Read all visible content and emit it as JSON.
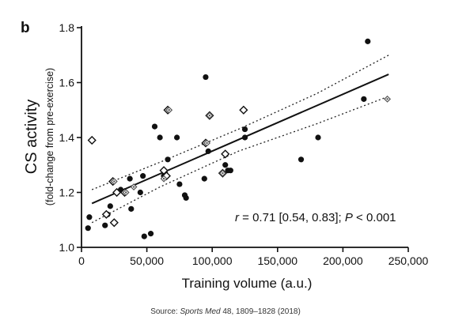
{
  "panel_label": "b",
  "source": {
    "prefix": "Source: ",
    "journal": "Sports Med",
    "suffix": " 48, 1809–1828 (2018)"
  },
  "chart_data": {
    "type": "scatter",
    "title": "",
    "xlabel": "Training volume (a.u.)",
    "ylabel": "CS activity",
    "ylabel_sub": "(fold-change from pre-exercise)",
    "xlim": [
      0,
      250000
    ],
    "ylim": [
      1.0,
      1.8
    ],
    "x_ticks": [
      0,
      50000,
      100000,
      150000,
      200000,
      250000
    ],
    "x_tick_labels": [
      "0",
      "50,000",
      "100,000",
      "150,000",
      "200,000",
      "250,000"
    ],
    "y_ticks": [
      1.0,
      1.2,
      1.4,
      1.6,
      1.8
    ],
    "y_tick_labels": [
      "1.0",
      "1.2",
      "1.4",
      "1.6",
      "1.8"
    ],
    "grid": false,
    "legend": "none",
    "annotation": {
      "r_symbol": "r",
      "r_text": " = 0.71 [0.54, 0.83]; ",
      "p_symbol": "P",
      "p_text": " < 0.001"
    },
    "series": [
      {
        "marker": "circle-filled",
        "color": "#111111",
        "points": [
          [
            5000,
            1.07
          ],
          [
            6000,
            1.11
          ],
          [
            18000,
            1.08
          ],
          [
            20000,
            1.12
          ],
          [
            22000,
            1.15
          ],
          [
            30000,
            1.21
          ],
          [
            37000,
            1.25
          ],
          [
            38000,
            1.14
          ],
          [
            45000,
            1.2
          ],
          [
            47000,
            1.26
          ],
          [
            48000,
            1.04
          ],
          [
            53000,
            1.05
          ],
          [
            56000,
            1.44
          ],
          [
            60000,
            1.4
          ],
          [
            63000,
            1.26
          ],
          [
            64000,
            1.27
          ],
          [
            66000,
            1.32
          ],
          [
            73000,
            1.4
          ],
          [
            75000,
            1.23
          ],
          [
            79000,
            1.19
          ],
          [
            80000,
            1.18
          ],
          [
            94000,
            1.25
          ],
          [
            95000,
            1.62
          ],
          [
            97000,
            1.35
          ],
          [
            110000,
            1.3
          ],
          [
            112000,
            1.28
          ],
          [
            114000,
            1.28
          ],
          [
            125000,
            1.43
          ],
          [
            125000,
            1.4
          ],
          [
            168000,
            1.32
          ],
          [
            181000,
            1.4
          ],
          [
            216000,
            1.54
          ],
          [
            219000,
            1.75
          ]
        ]
      },
      {
        "marker": "diamond-open",
        "color": "#111111",
        "points": [
          [
            8000,
            1.39
          ],
          [
            19000,
            1.12
          ],
          [
            24000,
            1.24
          ],
          [
            25000,
            1.09
          ],
          [
            27000,
            1.2
          ],
          [
            33000,
            1.2
          ],
          [
            63000,
            1.28
          ],
          [
            65000,
            1.26
          ],
          [
            66000,
            1.5
          ],
          [
            95000,
            1.38
          ],
          [
            98000,
            1.48
          ],
          [
            108000,
            1.27
          ],
          [
            110000,
            1.34
          ],
          [
            124000,
            1.5
          ]
        ]
      },
      {
        "marker": "diamond-open-dotted",
        "color": "#555555",
        "points": [
          [
            25000,
            1.24
          ],
          [
            34000,
            1.2
          ],
          [
            40000,
            1.22
          ],
          [
            63000,
            1.25
          ],
          [
            67000,
            1.5
          ],
          [
            96000,
            1.38
          ],
          [
            98000,
            1.48
          ],
          [
            108000,
            1.27
          ],
          [
            234000,
            1.54
          ]
        ]
      }
    ],
    "regression": {
      "x": [
        8000,
        235000
      ],
      "y": [
        1.16,
        1.63
      ]
    },
    "ci_upper": {
      "x": [
        8000,
        60000,
        120000,
        180000,
        235000
      ],
      "y": [
        1.21,
        1.31,
        1.43,
        1.56,
        1.7
      ]
    },
    "ci_lower": {
      "x": [
        8000,
        60000,
        120000,
        180000,
        235000
      ],
      "y": [
        1.09,
        1.22,
        1.35,
        1.45,
        1.55
      ]
    }
  }
}
